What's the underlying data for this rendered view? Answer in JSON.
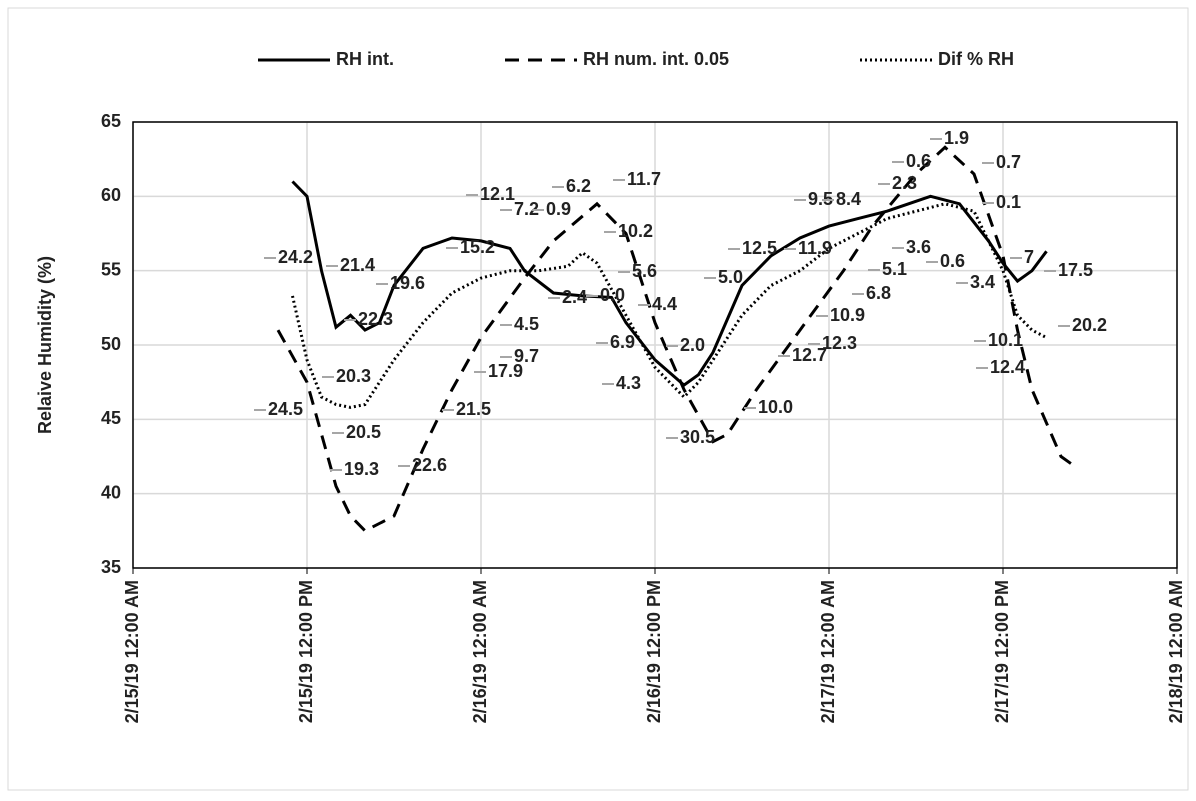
{
  "chart_data": {
    "type": "line",
    "y_label": "Relaive Humidity (%)",
    "xlim": [
      "2/15/19 12:00 AM",
      "2/18/19 12:00 AM"
    ],
    "xticks": [
      "2/15/19 12:00 AM",
      "2/15/19 12:00 PM",
      "2/16/19 12:00 AM",
      "2/16/19 12:00 PM",
      "2/17/19 12:00 AM",
      "2/17/19 12:00 PM",
      "2/18/19 12:00 AM"
    ],
    "ylim": [
      35,
      65
    ],
    "yticks": [
      35,
      40,
      45,
      50,
      55,
      60,
      65
    ],
    "grid": true,
    "legend": "top",
    "series": [
      {
        "name": "RH int.",
        "color": "#000000",
        "style": "solid",
        "x": [
          "2/15/19 11:00 AM",
          "2/15/19 12:00 PM",
          "2/15/19 1:00 PM",
          "2/15/19 2:00 PM",
          "2/15/19 3:00 PM",
          "2/15/19 4:00 PM",
          "2/15/19 5:00 PM",
          "2/15/19 6:00 PM",
          "2/15/19 8:00 PM",
          "2/15/19 10:00 PM",
          "2/16/19 12:00 AM",
          "2/16/19 2:00 AM",
          "2/16/19 3:00 AM",
          "2/16/19 5:00 AM",
          "2/16/19 7:00 AM",
          "2/16/19 9:00 AM",
          "2/16/19 10:00 AM",
          "2/16/19 12:00 PM",
          "2/16/19 2:00 PM",
          "2/16/19 3:00 PM",
          "2/16/19 4:00 PM",
          "2/16/19 6:00 PM",
          "2/16/19 8:00 PM",
          "2/16/19 10:00 PM",
          "2/17/19 12:00 AM",
          "2/17/19 2:00 AM",
          "2/17/19 4:00 AM",
          "2/17/19 7:00 AM",
          "2/17/19 9:00 AM",
          "2/17/19 11:00 AM",
          "2/17/19 12:00 PM",
          "2/17/19 1:00 PM",
          "2/17/19 2:00 PM",
          "2/17/19 3:00 PM"
        ],
        "values": [
          61,
          60,
          55,
          51.2,
          52,
          51,
          51.5,
          54,
          56.5,
          57.2,
          57,
          56.5,
          55,
          53.5,
          53.3,
          53.2,
          51.5,
          49,
          47.3,
          48,
          49.5,
          54,
          56,
          57.2,
          58,
          58.5,
          59,
          60,
          59.5,
          57,
          55.5,
          54.3,
          55,
          56.3
        ]
      },
      {
        "name": "RH num. int. 0.05",
        "color": "#000000",
        "style": "dashed",
        "x": [
          "2/15/19 10:00 AM",
          "2/15/19 12:00 PM",
          "2/15/19 2:00 PM",
          "2/15/19 3:00 PM",
          "2/15/19 4:00 PM",
          "2/15/19 6:00 PM",
          "2/15/19 8:00 PM",
          "2/15/19 10:00 PM",
          "2/16/19 12:00 AM",
          "2/16/19 3:00 AM",
          "2/16/19 5:00 AM",
          "2/16/19 8:00 AM",
          "2/16/19 10:00 AM",
          "2/16/19 12:00 PM",
          "2/16/19 2:00 PM",
          "2/16/19 4:00 PM",
          "2/16/19 5:00 PM",
          "2/16/19 7:00 PM",
          "2/16/19 10:00 PM",
          "2/17/19 1:00 AM",
          "2/17/19 3:00 AM",
          "2/17/19 6:00 AM",
          "2/17/19 8:00 AM",
          "2/17/19 10:00 AM",
          "2/17/19 12:00 PM",
          "2/17/19 1:00 PM",
          "2/17/19 2:00 PM",
          "2/17/19 4:00 PM",
          "2/17/19 5:00 PM"
        ],
        "values": [
          51,
          47.5,
          40.5,
          38.5,
          37.5,
          38.5,
          43,
          47,
          50.5,
          54.5,
          57,
          59.5,
          57.5,
          51.5,
          47,
          43.5,
          44,
          47,
          51,
          55,
          58,
          61.5,
          63.3,
          61.5,
          56,
          51,
          47,
          42.5,
          41.8
        ]
      },
      {
        "name": "Dif % RH",
        "color": "#000000",
        "style": "dotted",
        "x": [
          "2/15/19 11:00 AM",
          "2/15/19 12:00 PM",
          "2/15/19 1:00 PM",
          "2/15/19 2:00 PM",
          "2/15/19 3:00 PM",
          "2/15/19 4:00 PM",
          "2/15/19 5:00 PM",
          "2/15/19 6:00 PM",
          "2/15/19 8:00 PM",
          "2/15/19 10:00 PM",
          "2/16/19 12:00 AM",
          "2/16/19 2:00 AM",
          "2/16/19 4:00 AM",
          "2/16/19 6:00 AM",
          "2/16/19 7:00 AM",
          "2/16/19 8:00 AM",
          "2/16/19 10:00 AM",
          "2/16/19 12:00 PM",
          "2/16/19 2:00 PM",
          "2/16/19 3:00 PM",
          "2/16/19 4:00 PM",
          "2/16/19 6:00 PM",
          "2/16/19 8:00 PM",
          "2/16/19 10:00 PM",
          "2/17/19 12:00 AM",
          "2/17/19 2:00 AM",
          "2/17/19 4:00 AM",
          "2/17/19 6:00 AM",
          "2/17/19 8:00 AM",
          "2/17/19 10:00 AM",
          "2/17/19 12:00 PM",
          "2/17/19 1:00 PM",
          "2/17/19 2:00 PM",
          "2/17/19 3:00 PM"
        ],
        "values": [
          53.3,
          49,
          46.5,
          46,
          45.8,
          46,
          47.5,
          49,
          51.5,
          53.5,
          54.5,
          55,
          55,
          55.3,
          56.2,
          55.5,
          52,
          48.5,
          46.5,
          47.5,
          49,
          52,
          54,
          55,
          56.5,
          57.5,
          58.5,
          59,
          59.5,
          59,
          55,
          52,
          51,
          50.5
        ]
      }
    ],
    "annotations": [
      "24.2",
      "21.4",
      "24.5",
      "19.3",
      "20.5",
      "20.3",
      "22.3",
      "22.6",
      "19.6",
      "21.5",
      "15.2",
      "12.1",
      "7.2",
      "0.9",
      "6.2",
      "11.7",
      "10.2",
      "17.9",
      "9.7",
      "4.5",
      "2.4",
      "0.0",
      "5.6",
      "4.4",
      "6.9",
      "4.3",
      "2.0",
      "30.5",
      "5.0",
      "10.0",
      "12.5",
      "12.7",
      "12.3",
      "10.9",
      "11.9",
      "9.5",
      "8.4",
      "6.8",
      "5.1",
      "2.3",
      "0.6",
      "1.9",
      "0.7",
      "0.1",
      "3.6",
      "0.6",
      "3.4",
      "7",
      "17.5",
      "10.1",
      "12.4",
      "20.2"
    ]
  }
}
